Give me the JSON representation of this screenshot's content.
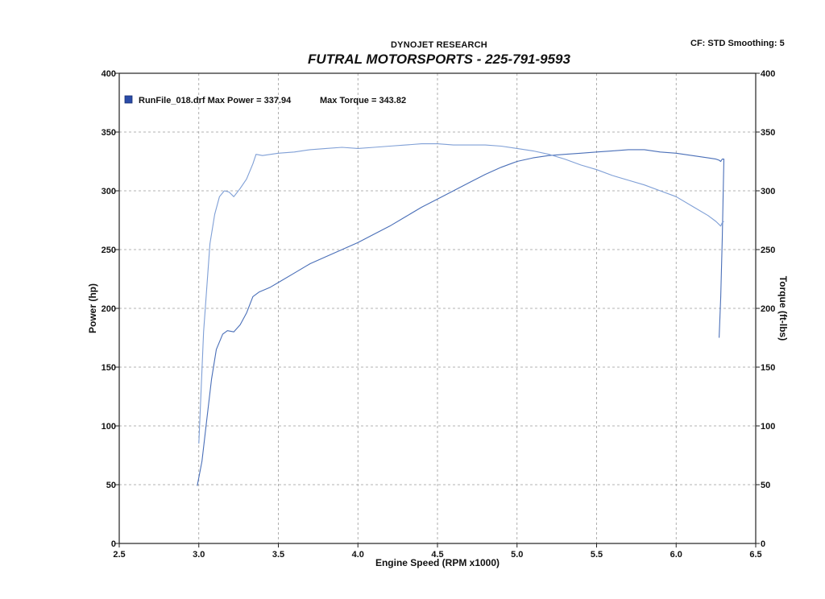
{
  "header": {
    "brand": "DYNOJET RESEARCH",
    "title": "FUTRAL MOTORSPORTS - 225-791-9593",
    "settings": "CF: STD  Smoothing: 5"
  },
  "legend": {
    "label": "RunFile_018.drf Max Power = 337.94",
    "torque_label": "Max Torque = 343.82",
    "swatch_color": "#2a4ba8"
  },
  "colors": {
    "power_line": "#4a6fb8",
    "torque_line": "#7f9fd6",
    "grid": "#9a9a9a",
    "axis": "#222222"
  },
  "chart_data": {
    "type": "line",
    "title": "FUTRAL MOTORSPORTS - 225-791-9593",
    "xlabel": "Engine Speed (RPM x1000)",
    "ylabel": "Power (hp)",
    "y2label": "Torque (ft-lbs)",
    "xlim": [
      2.5,
      6.5
    ],
    "ylim": [
      0,
      400
    ],
    "y2lim": [
      0,
      400
    ],
    "x_ticks": [
      2.5,
      3.0,
      3.5,
      4.0,
      4.5,
      5.0,
      5.5,
      6.0,
      6.5
    ],
    "x_tick_labels": [
      "2.5",
      "3.0",
      "3.5",
      "4.0",
      "4.5",
      "5.0",
      "5.5",
      "6.0",
      "6.5"
    ],
    "y_ticks": [
      0,
      50,
      100,
      150,
      200,
      250,
      300,
      350,
      400
    ],
    "y_tick_labels": [
      "0",
      "50",
      "100",
      "150",
      "200",
      "250",
      "300",
      "350",
      "400"
    ],
    "grid": true,
    "legend_position": "top-left",
    "series": [
      {
        "name": "Power",
        "axis": "left",
        "points": [
          [
            2.99,
            49
          ],
          [
            3.02,
            70
          ],
          [
            3.05,
            105
          ],
          [
            3.08,
            140
          ],
          [
            3.11,
            165
          ],
          [
            3.15,
            178
          ],
          [
            3.18,
            181
          ],
          [
            3.22,
            180
          ],
          [
            3.26,
            186
          ],
          [
            3.3,
            196
          ],
          [
            3.34,
            210
          ],
          [
            3.38,
            214
          ],
          [
            3.45,
            218
          ],
          [
            3.5,
            222
          ],
          [
            3.6,
            230
          ],
          [
            3.7,
            238
          ],
          [
            3.8,
            244
          ],
          [
            3.9,
            250
          ],
          [
            4.0,
            256
          ],
          [
            4.1,
            263
          ],
          [
            4.2,
            270
          ],
          [
            4.3,
            278
          ],
          [
            4.4,
            286
          ],
          [
            4.5,
            293
          ],
          [
            4.6,
            300
          ],
          [
            4.7,
            307
          ],
          [
            4.8,
            314
          ],
          [
            4.9,
            320
          ],
          [
            5.0,
            325
          ],
          [
            5.1,
            328
          ],
          [
            5.2,
            330
          ],
          [
            5.3,
            331
          ],
          [
            5.4,
            332
          ],
          [
            5.5,
            333
          ],
          [
            5.6,
            334
          ],
          [
            5.7,
            335
          ],
          [
            5.8,
            335
          ],
          [
            5.9,
            333
          ],
          [
            6.0,
            332
          ],
          [
            6.1,
            330
          ],
          [
            6.2,
            328
          ],
          [
            6.25,
            327
          ],
          [
            6.27,
            326
          ],
          [
            6.28,
            325
          ],
          [
            6.29,
            327
          ],
          [
            6.3,
            327
          ],
          [
            6.29,
            260
          ],
          [
            6.28,
            210
          ],
          [
            6.27,
            175
          ]
        ]
      },
      {
        "name": "Torque",
        "axis": "right",
        "points": [
          [
            3.0,
            85
          ],
          [
            3.03,
            180
          ],
          [
            3.07,
            255
          ],
          [
            3.1,
            280
          ],
          [
            3.13,
            295
          ],
          [
            3.16,
            300
          ],
          [
            3.19,
            299
          ],
          [
            3.22,
            295
          ],
          [
            3.26,
            302
          ],
          [
            3.3,
            310
          ],
          [
            3.34,
            323
          ],
          [
            3.36,
            331
          ],
          [
            3.4,
            330
          ],
          [
            3.5,
            332
          ],
          [
            3.6,
            333
          ],
          [
            3.7,
            335
          ],
          [
            3.8,
            336
          ],
          [
            3.9,
            337
          ],
          [
            4.0,
            336
          ],
          [
            4.1,
            337
          ],
          [
            4.2,
            338
          ],
          [
            4.3,
            339
          ],
          [
            4.4,
            340
          ],
          [
            4.5,
            340
          ],
          [
            4.6,
            339
          ],
          [
            4.7,
            339
          ],
          [
            4.8,
            339
          ],
          [
            4.9,
            338
          ],
          [
            5.0,
            336
          ],
          [
            5.1,
            334
          ],
          [
            5.2,
            331
          ],
          [
            5.3,
            327
          ],
          [
            5.4,
            322
          ],
          [
            5.5,
            318
          ],
          [
            5.6,
            313
          ],
          [
            5.7,
            309
          ],
          [
            5.8,
            305
          ],
          [
            5.9,
            300
          ],
          [
            6.0,
            295
          ],
          [
            6.1,
            287
          ],
          [
            6.2,
            279
          ],
          [
            6.25,
            274
          ],
          [
            6.28,
            270
          ],
          [
            6.29,
            273
          ],
          [
            6.3,
            274
          ]
        ]
      }
    ]
  }
}
